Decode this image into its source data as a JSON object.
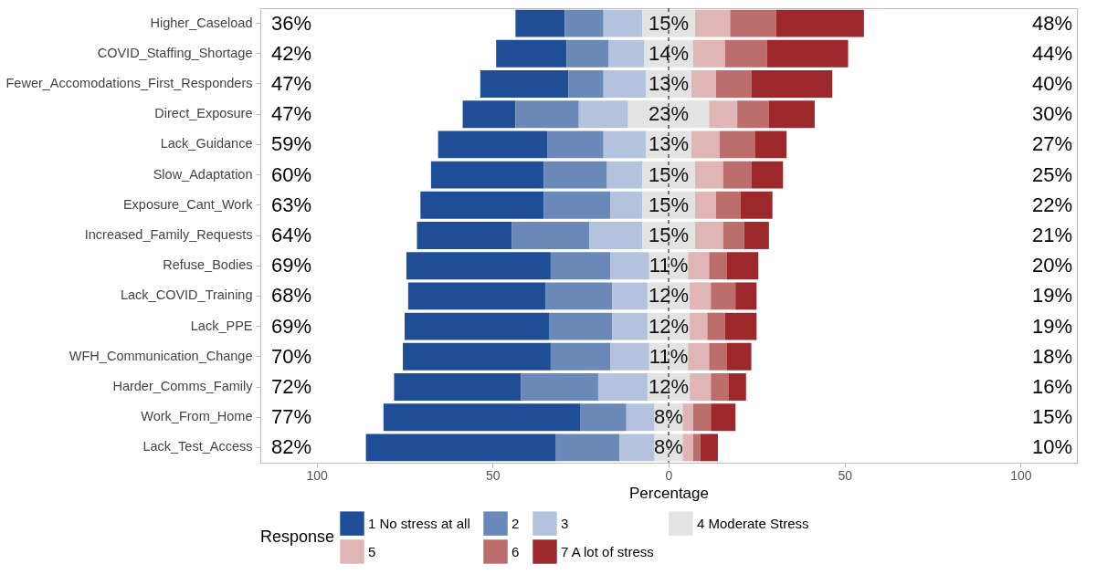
{
  "chart_data": {
    "type": "bar",
    "orientation": "horizontal",
    "categories": [
      "Higher_Caseload",
      "COVID_Staffing_Shortage",
      "Fewer_Accomodations_First_Responders",
      "Direct_Exposure",
      "Lack_Guidance",
      "Slow_Adaptation",
      "Exposure_Cant_Work",
      "Increased_Family_Requests",
      "Refuse_Bodies",
      "Lack_COVID_Training",
      "Lack_PPE",
      "WFH_Communication_Change",
      "Harder_Comms_Family",
      "Work_From_Home",
      "Lack_Test_Access"
    ],
    "series": [
      {
        "name": "1 No stress at all",
        "color": "#1f4e96",
        "base": [
          -43.5,
          -49,
          -53.5,
          -58.5,
          -65.5,
          -67.5,
          -70.5,
          -71.5,
          -74.5,
          -74,
          -75,
          -75.5,
          -78,
          -81,
          -86
        ],
        "values": [
          14,
          20,
          25,
          15,
          31,
          32,
          35,
          27,
          41,
          39,
          41,
          42,
          36,
          56,
          54
        ]
      },
      {
        "name": "2",
        "color": "#6a89b8",
        "base": [
          -29.5,
          -29,
          -28.5,
          -43.5,
          -34.5,
          -35.5,
          -35.5,
          -44.5,
          -33.5,
          -35,
          -34,
          -33.5,
          -42,
          -25,
          -32
        ],
        "values": [
          11,
          12,
          10,
          18,
          16,
          18,
          19,
          22,
          17,
          19,
          18,
          17,
          22,
          13,
          18
        ]
      },
      {
        "name": "3",
        "color": "#b3c3de",
        "base": [
          -18.5,
          -17,
          -18.5,
          -25.5,
          -18.5,
          -17.5,
          -16.5,
          -22.5,
          -16.5,
          -16,
          -16,
          -16.5,
          -20,
          -12,
          -14
        ],
        "values": [
          11,
          10,
          12,
          14,
          12,
          10,
          9,
          15,
          11,
          10,
          10,
          11,
          14,
          8,
          10
        ]
      },
      {
        "name": "4 Moderate Stress",
        "color": "#e3e3e3",
        "base": [
          -7.5,
          -7,
          -6.5,
          -11.5,
          -6.5,
          -7.5,
          -7.5,
          -7.5,
          -5.5,
          -6,
          -6,
          -5.5,
          -6,
          -4,
          -4
        ],
        "values": [
          15,
          14,
          13,
          23,
          13,
          15,
          15,
          15,
          11,
          12,
          12,
          11,
          12,
          8,
          8
        ],
        "value_labels": [
          "15%",
          "14%",
          "13%",
          "23%",
          "13%",
          "15%",
          "15%",
          "15%",
          "11%",
          "12%",
          "12%",
          "11%",
          "12%",
          "8%",
          "8%"
        ]
      },
      {
        "name": "5",
        "color": "#dfb5b5",
        "base": [
          7.5,
          7,
          6.5,
          11.5,
          6.5,
          7.5,
          7.5,
          7.5,
          5.5,
          6,
          6,
          5.5,
          6,
          4,
          4
        ],
        "values": [
          10,
          9,
          7,
          8,
          8,
          8,
          6,
          8,
          6,
          6,
          5,
          6,
          6,
          3,
          3
        ]
      },
      {
        "name": "6",
        "color": "#bd6e6c",
        "base": [
          17.5,
          16,
          13.5,
          19.5,
          14.5,
          15.5,
          13.5,
          15.5,
          11.5,
          12,
          11,
          11.5,
          12,
          7,
          7
        ],
        "values": [
          13,
          12,
          10,
          9,
          10,
          8,
          7,
          6,
          5,
          7,
          5,
          5,
          5,
          5,
          2
        ]
      },
      {
        "name": "7 A lot of stress",
        "color": "#9c282b",
        "base": [
          30.5,
          28,
          23.5,
          28.5,
          24.5,
          23.5,
          20.5,
          21.5,
          16.5,
          19,
          16,
          16.5,
          17,
          12,
          9
        ],
        "values": [
          25,
          23,
          23,
          13,
          9,
          9,
          9,
          7,
          9,
          6,
          9,
          7,
          5,
          7,
          5
        ]
      }
    ],
    "xlim": [
      -116,
      116
    ],
    "xticks": [
      {
        "value": -100,
        "label": "100"
      },
      {
        "value": -50,
        "label": "50"
      },
      0,
      50,
      100
    ],
    "xlabel": "Percentage",
    "legend": "bottom",
    "legend_title": "Response",
    "ref_lines": [
      {
        "axis": "x",
        "value": 0,
        "color": "#000000",
        "line_style": "dashed"
      }
    ],
    "annotations": [
      "36%",
      "42%",
      "47%",
      "47%",
      "59%",
      "60%",
      "63%",
      "64%",
      "69%",
      "68%",
      "69%",
      "70%",
      "72%",
      "77%",
      "82%",
      "48%",
      "44%",
      "40%",
      "30%",
      "27%",
      "25%",
      "22%",
      "21%",
      "20%",
      "19%",
      "19%",
      "18%",
      "16%",
      "15%",
      "10%"
    ]
  }
}
